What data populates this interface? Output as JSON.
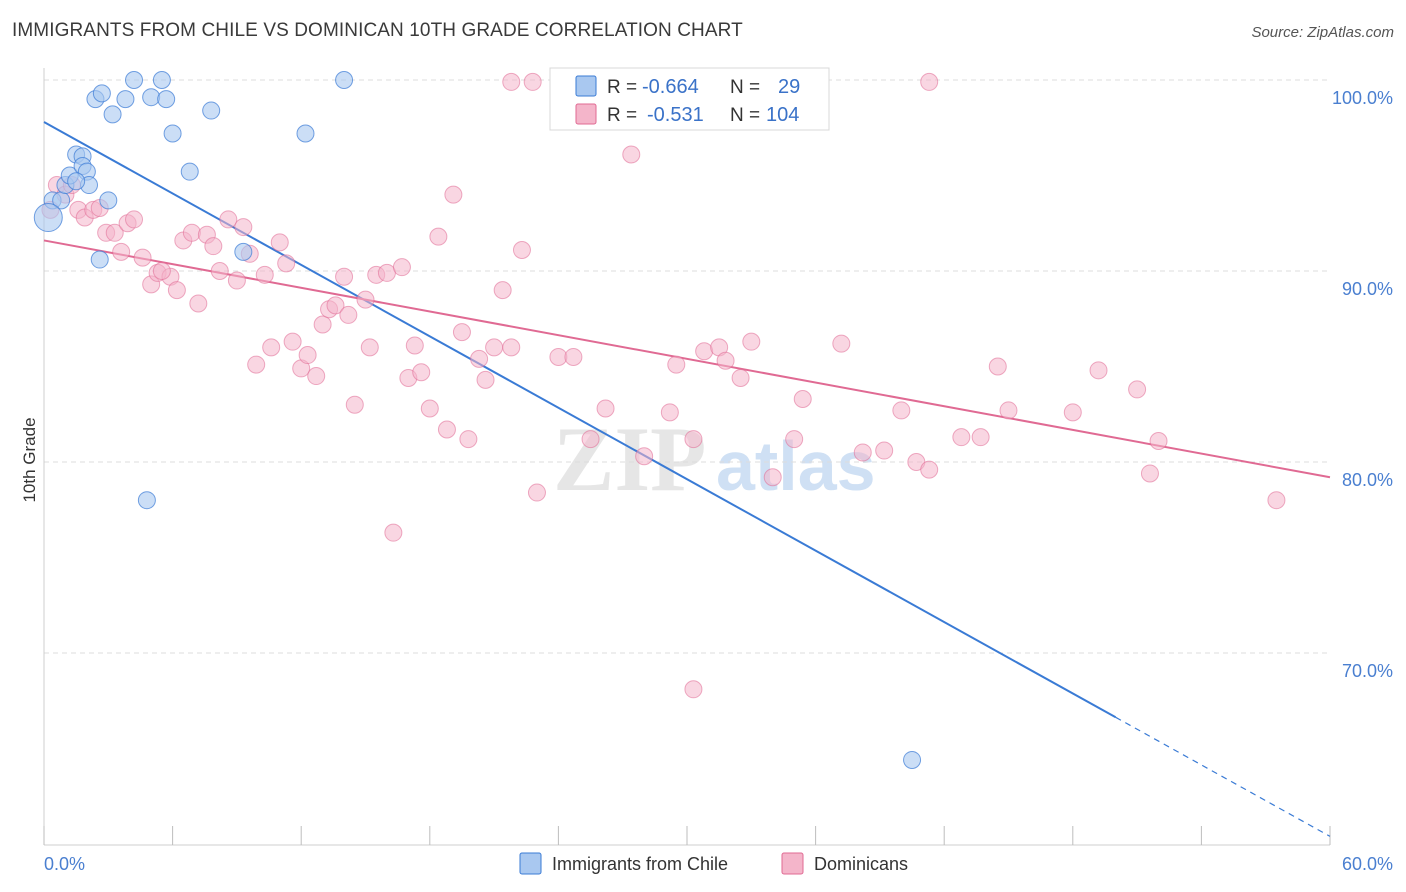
{
  "title": "IMMIGRANTS FROM CHILE VS DOMINICAN 10TH GRADE CORRELATION CHART",
  "source": "Source: ZipAtlas.com",
  "colors": {
    "blue": "#3a7bd5",
    "blue_fill": "#a9c8f0",
    "pink": "#e06a93",
    "pink_fill": "#f4b5ca",
    "tick": "#4a7fd0",
    "grid": "#dcdcdc"
  },
  "legend": {
    "r_label": "R =",
    "n_label": "N =",
    "rows": [
      {
        "r": "-0.664",
        "n": "29"
      },
      {
        "r": "-0.531",
        "n": "104"
      }
    ]
  },
  "watermark": {
    "zip": "ZIP",
    "atlas": "atlas"
  },
  "chart_data": {
    "type": "scatter",
    "title": "IMMIGRANTS FROM CHILE VS DOMINICAN 10TH GRADE CORRELATION CHART",
    "xlabel": "",
    "ylabel": "10th Grade",
    "xlim": [
      0,
      60
    ],
    "ylim": [
      60,
      101.5
    ],
    "x_tick_labels": [
      "0.0%",
      "60.0%"
    ],
    "y_ticks": [
      100,
      90,
      80,
      70
    ],
    "y_tick_labels": [
      "100.0%",
      "90.0%",
      "80.0%",
      "70.0%"
    ],
    "grid": true,
    "legend_position": "top-center",
    "series": [
      {
        "name": "Immigrants from Chile",
        "color": "#3a7bd5",
        "trend": {
          "x0": 0,
          "y0": 97.8,
          "x1": 60,
          "y1": 60.4,
          "solid_until_x": 50
        },
        "points": [
          [
            0.4,
            93.7
          ],
          [
            0.8,
            93.7
          ],
          [
            1.0,
            94.5
          ],
          [
            1.2,
            95.0
          ],
          [
            1.5,
            96.1
          ],
          [
            1.8,
            96.0
          ],
          [
            1.8,
            95.5
          ],
          [
            2.0,
            95.2
          ],
          [
            2.1,
            94.5
          ],
          [
            2.4,
            99.0
          ],
          [
            2.7,
            99.3
          ],
          [
            3.0,
            93.7
          ],
          [
            3.2,
            98.2
          ],
          [
            3.8,
            99.0
          ],
          [
            4.2,
            100.0
          ],
          [
            5.0,
            99.1
          ],
          [
            5.5,
            100.0
          ],
          [
            5.7,
            99.0
          ],
          [
            6.0,
            97.2
          ],
          [
            6.8,
            95.2
          ],
          [
            7.8,
            98.4
          ],
          [
            9.3,
            91.0
          ],
          [
            12.2,
            97.2
          ],
          [
            14.0,
            100.0
          ],
          [
            2.6,
            90.6
          ],
          [
            4.8,
            78.0
          ],
          [
            40.5,
            64.4
          ],
          [
            0.2,
            92.8
          ],
          [
            1.5,
            94.7
          ]
        ]
      },
      {
        "name": "Dominicans",
        "color": "#e06a93",
        "trend": {
          "x0": 0,
          "y0": 91.6,
          "x1": 60,
          "y1": 79.2
        },
        "points": [
          [
            0.3,
            93.2
          ],
          [
            0.6,
            94.5
          ],
          [
            1.0,
            94.0
          ],
          [
            1.3,
            94.5
          ],
          [
            1.6,
            93.2
          ],
          [
            1.9,
            92.8
          ],
          [
            2.3,
            93.2
          ],
          [
            2.6,
            93.3
          ],
          [
            2.9,
            92.0
          ],
          [
            3.3,
            92.0
          ],
          [
            3.6,
            91.0
          ],
          [
            3.9,
            92.5
          ],
          [
            4.2,
            92.7
          ],
          [
            4.6,
            90.7
          ],
          [
            5.0,
            89.3
          ],
          [
            5.3,
            89.9
          ],
          [
            5.9,
            89.7
          ],
          [
            6.2,
            89.0
          ],
          [
            6.5,
            91.6
          ],
          [
            6.9,
            92.0
          ],
          [
            7.2,
            88.3
          ],
          [
            7.6,
            91.9
          ],
          [
            7.9,
            91.3
          ],
          [
            8.2,
            90.0
          ],
          [
            8.6,
            92.7
          ],
          [
            9.0,
            89.5
          ],
          [
            9.3,
            92.3
          ],
          [
            9.6,
            90.9
          ],
          [
            9.9,
            85.1
          ],
          [
            10.3,
            89.8
          ],
          [
            10.6,
            86.0
          ],
          [
            11.0,
            91.5
          ],
          [
            11.3,
            90.4
          ],
          [
            11.6,
            86.3
          ],
          [
            12.0,
            84.9
          ],
          [
            12.3,
            85.6
          ],
          [
            12.7,
            84.5
          ],
          [
            13.0,
            87.2
          ],
          [
            13.3,
            88.0
          ],
          [
            13.6,
            88.2
          ],
          [
            14.0,
            89.7
          ],
          [
            14.2,
            87.7
          ],
          [
            14.5,
            83.0
          ],
          [
            15.0,
            88.5
          ],
          [
            15.2,
            86.0
          ],
          [
            15.5,
            89.8
          ],
          [
            16.0,
            89.9
          ],
          [
            16.3,
            76.3
          ],
          [
            16.7,
            90.2
          ],
          [
            17.0,
            84.4
          ],
          [
            17.3,
            86.1
          ],
          [
            17.6,
            84.7
          ],
          [
            18.0,
            82.8
          ],
          [
            18.4,
            91.8
          ],
          [
            18.8,
            81.7
          ],
          [
            19.1,
            94.0
          ],
          [
            19.5,
            86.8
          ],
          [
            19.8,
            81.2
          ],
          [
            20.3,
            85.4
          ],
          [
            20.6,
            84.3
          ],
          [
            21.0,
            86.0
          ],
          [
            21.4,
            89.0
          ],
          [
            21.8,
            86.0
          ],
          [
            22.3,
            91.1
          ],
          [
            23.0,
            78.4
          ],
          [
            24.0,
            85.5
          ],
          [
            24.7,
            85.5
          ],
          [
            25.5,
            81.2
          ],
          [
            26.2,
            82.8
          ],
          [
            27.4,
            96.1
          ],
          [
            28.0,
            80.3
          ],
          [
            29.2,
            82.6
          ],
          [
            29.5,
            85.1
          ],
          [
            30.3,
            81.2
          ],
          [
            30.8,
            85.8
          ],
          [
            31.5,
            86.0
          ],
          [
            31.8,
            85.3
          ],
          [
            32.5,
            84.4
          ],
          [
            33.0,
            86.3
          ],
          [
            34.0,
            79.2
          ],
          [
            35.0,
            81.2
          ],
          [
            35.4,
            83.3
          ],
          [
            37.2,
            86.2
          ],
          [
            38.2,
            80.5
          ],
          [
            39.2,
            80.6
          ],
          [
            40.0,
            82.7
          ],
          [
            40.7,
            80.0
          ],
          [
            41.3,
            79.6
          ],
          [
            42.8,
            81.3
          ],
          [
            43.7,
            81.3
          ],
          [
            44.5,
            85.0
          ],
          [
            45.0,
            82.7
          ],
          [
            48.0,
            82.6
          ],
          [
            49.2,
            84.8
          ],
          [
            51.0,
            83.8
          ],
          [
            51.6,
            79.4
          ],
          [
            52.0,
            81.1
          ],
          [
            57.5,
            78.0
          ],
          [
            30.3,
            68.1
          ],
          [
            21.8,
            99.9
          ],
          [
            22.8,
            99.9
          ],
          [
            32.0,
            99.9
          ],
          [
            41.3,
            99.9
          ],
          [
            5.5,
            90.0
          ]
        ]
      }
    ]
  },
  "bottom_legend": [
    {
      "label": "Immigrants from Chile"
    },
    {
      "label": "Dominicans"
    }
  ]
}
